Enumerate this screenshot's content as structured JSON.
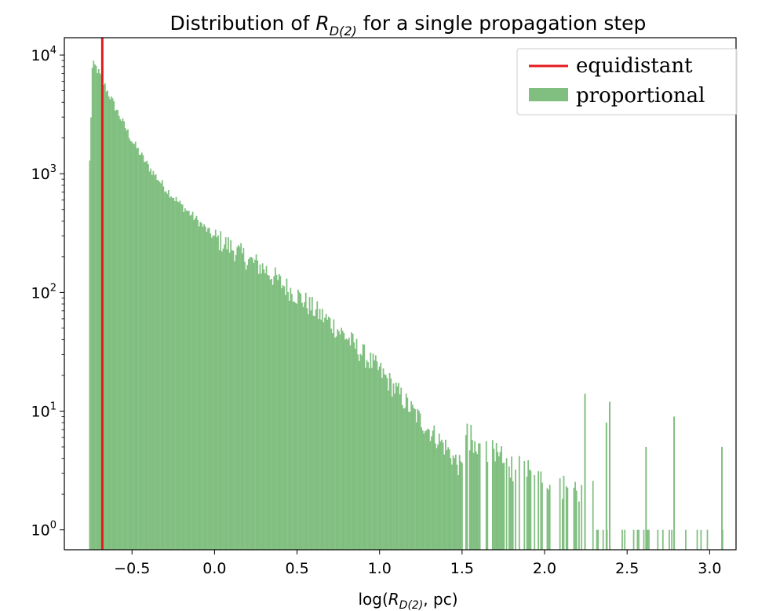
{
  "chart_data": {
    "type": "histogram",
    "title_prefix": "Distribution of ",
    "title_symbol": "R",
    "title_subscript": "D(2)",
    "title_suffix": " for a single propagation step",
    "xlabel_prefix": "log(",
    "xlabel_symbol": "R",
    "xlabel_subscript": "D(2)",
    "xlabel_suffix": ", pc)",
    "x_ticks": [
      -0.5,
      0.0,
      0.5,
      1.0,
      1.5,
      2.0,
      2.5,
      3.0
    ],
    "x_tick_labels": [
      "−0.5",
      "0.0",
      "0.5",
      "1.0",
      "1.5",
      "2.0",
      "2.5",
      "3.0"
    ],
    "xlim": [
      -0.91,
      3.16
    ],
    "y_scale": "log",
    "ylim": [
      0.68,
      14000
    ],
    "y_ticks": [
      {
        "value": 1,
        "base": "10",
        "exp": "0"
      },
      {
        "value": 10,
        "base": "10",
        "exp": "1"
      },
      {
        "value": 100,
        "base": "10",
        "exp": "2"
      },
      {
        "value": 1000,
        "base": "10",
        "exp": "3"
      },
      {
        "value": 10000,
        "base": "10",
        "exp": "4"
      }
    ],
    "grid": false,
    "legend_position": "top-right",
    "series": [
      {
        "name": "equidistant",
        "kind": "vertical-line",
        "x": -0.68,
        "color": "#e41a1c"
      },
      {
        "name": "proportional",
        "kind": "histogram",
        "color": "#80bf80",
        "range": [
          -0.76,
          3.08
        ],
        "bin_width": 0.0077
      }
    ],
    "histogram_shape": {
      "note_points": [
        [
          -0.76,
          800
        ],
        [
          -0.74,
          8300
        ],
        [
          -0.72,
          8000
        ],
        [
          -0.65,
          5000
        ],
        [
          -0.6,
          3600
        ],
        [
          -0.5,
          1900
        ],
        [
          -0.4,
          1150
        ],
        [
          -0.3,
          760
        ],
        [
          -0.2,
          540
        ],
        [
          -0.1,
          400
        ],
        [
          0.0,
          290
        ],
        [
          0.1,
          240
        ],
        [
          0.2,
          190
        ],
        [
          0.3,
          160
        ],
        [
          0.4,
          120
        ],
        [
          0.5,
          95
        ],
        [
          0.6,
          72
        ],
        [
          0.7,
          56
        ],
        [
          0.8,
          42
        ],
        [
          0.9,
          30
        ],
        [
          1.0,
          22
        ],
        [
          1.1,
          15
        ],
        [
          1.2,
          10
        ],
        [
          1.3,
          7
        ],
        [
          1.4,
          5
        ],
        [
          1.5,
          3.2
        ],
        [
          1.6,
          2.5
        ],
        [
          1.7,
          2.0
        ],
        [
          1.8,
          1.6
        ],
        [
          1.9,
          1.4
        ],
        [
          2.0,
          1.2
        ],
        [
          2.1,
          1.1
        ],
        [
          2.3,
          1.0
        ],
        [
          2.5,
          1.0
        ],
        [
          2.8,
          1.0
        ],
        [
          3.08,
          1.0
        ]
      ],
      "sparse_bars": [
        {
          "x": 2.24,
          "y": 14
        },
        {
          "x": 2.37,
          "y": 8
        },
        {
          "x": 2.39,
          "y": 12
        },
        {
          "x": 2.61,
          "y": 5
        },
        {
          "x": 2.78,
          "y": 9
        },
        {
          "x": 3.07,
          "y": 5
        }
      ]
    }
  }
}
